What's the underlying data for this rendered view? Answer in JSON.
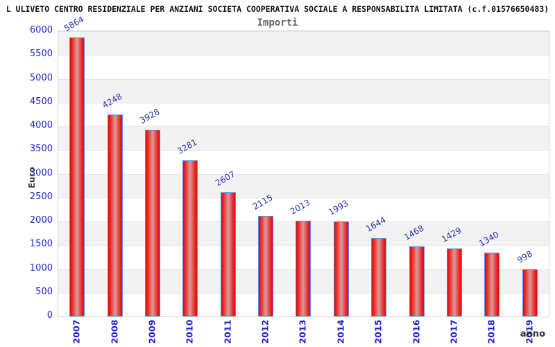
{
  "header": {
    "title": "L ULIVETO CENTRO RESIDENZIALE PER ANZIANI SOCIETA COOPERATIVA SOCIALE A RESPONSABILITA LIMITATA (c.f.01576650483)"
  },
  "chart_data": {
    "type": "bar",
    "title": "Importi",
    "xlabel": "anno",
    "ylabel": "Euro",
    "categories": [
      "2007",
      "2008",
      "2009",
      "2010",
      "2011",
      "2012",
      "2013",
      "2014",
      "2015",
      "2016",
      "2017",
      "2018",
      "2019"
    ],
    "values": [
      5864,
      4248,
      3928,
      3281,
      2607,
      2115,
      2013,
      1993,
      1644,
      1468,
      1429,
      1340,
      998
    ],
    "ylim": [
      0,
      6000
    ],
    "ytick_step": 500,
    "legend": "none",
    "grid": "horizontal-bands-alternating",
    "colors": {
      "bar_edge": "#5b8dee",
      "bar_fill_main": "#ee1c1c",
      "bar_fill_mid": "#d89a9a",
      "value_label": "#2233aa",
      "tick_label": "#2222cc",
      "band_gray": "#f2f2f2",
      "axis_label_text": "#444444",
      "title_text": "#111111",
      "subtitle_text": "#666666"
    }
  }
}
